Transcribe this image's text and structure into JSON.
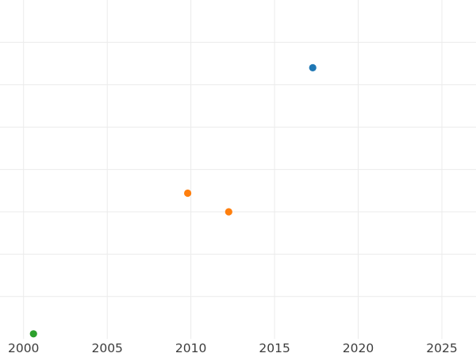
{
  "chart_data": {
    "type": "scatter",
    "title": "",
    "xlabel": "",
    "ylabel": "",
    "x_ticks": [
      "2000",
      "2005",
      "2010",
      "2015",
      "2020",
      "2025"
    ],
    "x_tick_values": [
      2000,
      2005,
      2010,
      2015,
      2020,
      2025
    ],
    "xlim": [
      1998.59,
      2027.04
    ],
    "ylim": [
      0,
      8
    ],
    "y_gridlines": [
      1,
      2,
      3,
      4,
      5,
      6,
      7
    ],
    "grid": true,
    "legend_position": "none-visible",
    "note": "y-axis tick labels are cropped outside the left edge of the image; y values are measured in gridline units from the plot bottom",
    "series": [
      {
        "name": "blue-series",
        "color": "#1f77b4",
        "points": [
          {
            "x": 2017.28,
            "y": 6.4
          }
        ]
      },
      {
        "name": "orange-series",
        "color": "#ff7f0e",
        "points": [
          {
            "x": 2009.81,
            "y": 3.44
          },
          {
            "x": 2012.26,
            "y": 3.0
          }
        ]
      },
      {
        "name": "green-series",
        "color": "#2ca02c",
        "points": [
          {
            "x": 2000.59,
            "y": 0.12
          }
        ]
      }
    ],
    "marker": {
      "shape": "circle",
      "radius_px": 4.6
    },
    "colors": {
      "background": "#ffffff",
      "gridline": "#ebebeb",
      "tick_label": "#3c3c3c"
    },
    "tick_font_size_px": 15.5
  }
}
